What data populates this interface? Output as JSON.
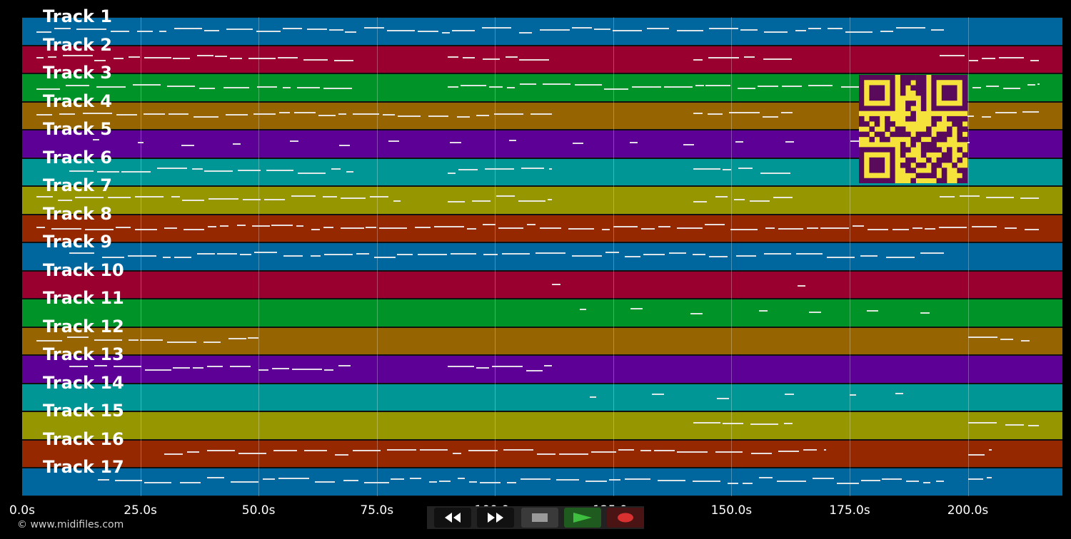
{
  "tracks": [
    {
      "label": "Track 1",
      "color": "#00669e"
    },
    {
      "label": "Track 2",
      "color": "#990030"
    },
    {
      "label": "Track 3",
      "color": "#009428"
    },
    {
      "label": "Track 4",
      "color": "#966400"
    },
    {
      "label": "Track 5",
      "color": "#5c0096"
    },
    {
      "label": "Track 6",
      "color": "#009696"
    },
    {
      "label": "Track 7",
      "color": "#969600"
    },
    {
      "label": "Track 8",
      "color": "#962800"
    },
    {
      "label": "Track 9",
      "color": "#00669e"
    },
    {
      "label": "Track 10",
      "color": "#990030"
    },
    {
      "label": "Track 11",
      "color": "#009428"
    },
    {
      "label": "Track 12",
      "color": "#966400"
    },
    {
      "label": "Track 13",
      "color": "#5c0096"
    },
    {
      "label": "Track 14",
      "color": "#009696"
    },
    {
      "label": "Track 15",
      "color": "#969600"
    },
    {
      "label": "Track 16",
      "color": "#962800"
    },
    {
      "label": "Track 17",
      "color": "#00669e"
    }
  ],
  "timeline": {
    "ticks": [
      "0.0s",
      "25.0s",
      "50.0s",
      "75.0s",
      "100.0s",
      "125.0s",
      "150.0s",
      "175.0s",
      "200.0s"
    ],
    "tick_values": [
      0,
      25,
      50,
      75,
      100,
      125,
      150,
      175,
      200
    ],
    "max_seconds": 220
  },
  "controls": {
    "rewind_icon": "rewind-icon",
    "fast_forward_icon": "fast-forward-icon",
    "stop_icon": "stop-icon",
    "play_icon": "play-icon",
    "record_icon": "record-icon",
    "play_color": "#3fbf3f",
    "record_color": "#d93030"
  },
  "credit": "© www.midifiles.com",
  "qr_code": {
    "icon": "qr-code-icon",
    "fg": "#5a0a5a",
    "bg": "#f5e23a"
  }
}
